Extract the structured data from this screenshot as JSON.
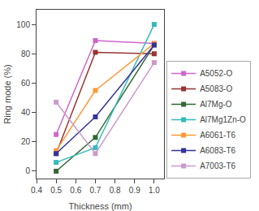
{
  "chart_data": {
    "type": "line",
    "xlabel": "Thickness (mm)",
    "ylabel": "Ring mode (%)",
    "x": [
      0.5,
      0.7,
      1.0
    ],
    "xlim": [
      0.4,
      1.05
    ],
    "ylim": [
      -5,
      110
    ],
    "xticks": [
      0.4,
      0.5,
      0.6,
      0.7,
      0.8,
      0.9,
      {
        "value": 1.0,
        "label": "1.0"
      }
    ],
    "yticks": [
      0,
      20,
      40,
      60,
      80,
      100
    ],
    "grid": false,
    "legend": "lower right",
    "series": [
      {
        "name": "A5052-O",
        "color": "#cc66cc",
        "marker": "square",
        "line_style": "solid",
        "values": [
          25,
          89,
          87
        ]
      },
      {
        "name": "A5083-O",
        "color": "#993333",
        "marker": "square",
        "line_style": "solid",
        "values": [
          12,
          81,
          80
        ]
      },
      {
        "name": "Al7Mg-O",
        "color": "#336633",
        "marker": "square",
        "line_style": "solid",
        "values": [
          0,
          23,
          86
        ]
      },
      {
        "name": "Al7Mg1Zn-O",
        "color": "#33bbbb",
        "marker": "square",
        "line_style": "solid",
        "values": [
          6,
          16,
          100
        ]
      },
      {
        "name": "A6061-T6",
        "color": "#ff9933",
        "marker": "square",
        "line_style": "solid",
        "values": [
          14,
          55,
          87
        ]
      },
      {
        "name": "A6083-T6",
        "color": "#333399",
        "marker": "square",
        "line_style": "solid",
        "values": [
          12,
          37,
          86
        ]
      },
      {
        "name": "A7003-T6",
        "color": "#cc99cc",
        "marker": "square",
        "line_style": "solid",
        "values": [
          47,
          12,
          74
        ]
      }
    ]
  }
}
